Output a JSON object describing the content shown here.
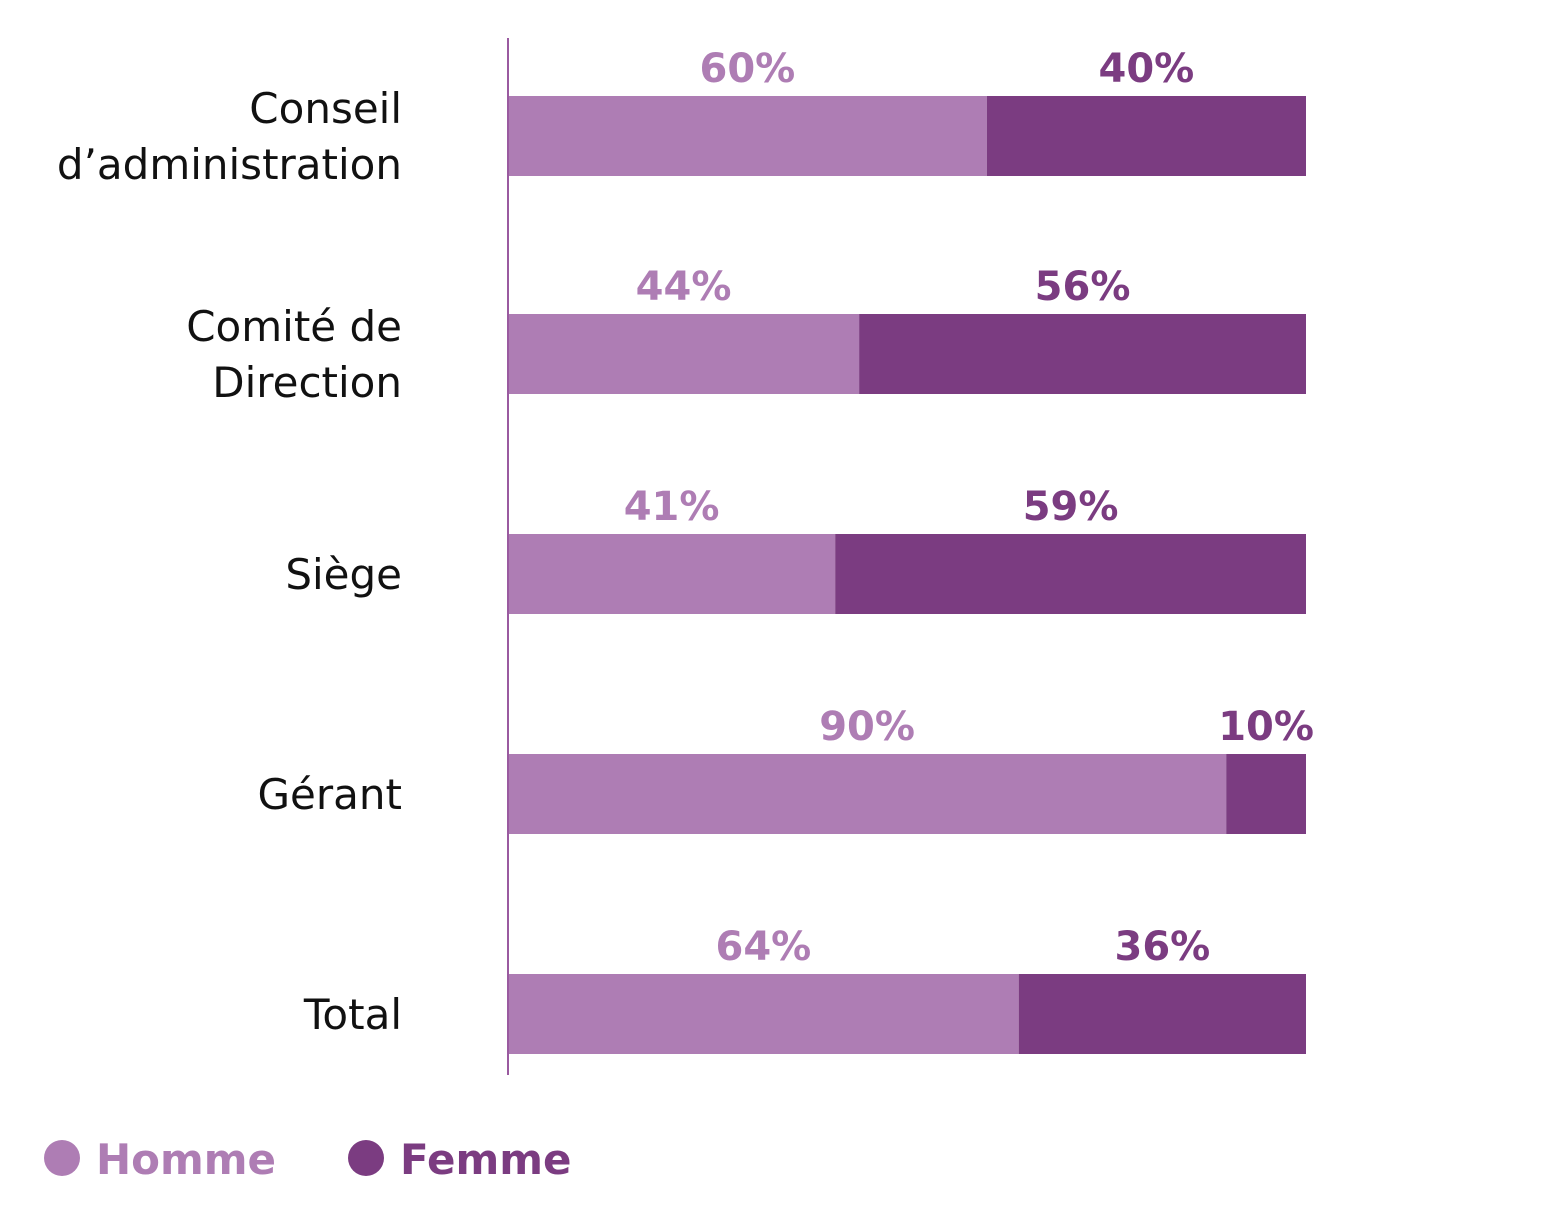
{
  "colors": {
    "homme": "#ae7db4",
    "femme": "#7b3c81",
    "axis": "#9a5aa0",
    "text": "#111111"
  },
  "chart_data": {
    "type": "bar",
    "orientation": "horizontal",
    "stacked": true,
    "categories": [
      [
        "Conseil",
        "d’administration"
      ],
      [
        "Comité de",
        "Direction"
      ],
      [
        "Siège"
      ],
      [
        "Gérant"
      ],
      [
        "Total"
      ]
    ],
    "series": [
      {
        "name": "Homme",
        "values": [
          60,
          44,
          41,
          90,
          64
        ],
        "labels": [
          "60%",
          "44%",
          "41%",
          "90%",
          "64%"
        ]
      },
      {
        "name": "Femme",
        "values": [
          40,
          56,
          59,
          10,
          36
        ],
        "labels": [
          "40%",
          "56%",
          "59%",
          "10%",
          "36%"
        ]
      }
    ],
    "xlim": [
      0,
      100
    ],
    "grid": false,
    "legend": "bottom-left"
  }
}
